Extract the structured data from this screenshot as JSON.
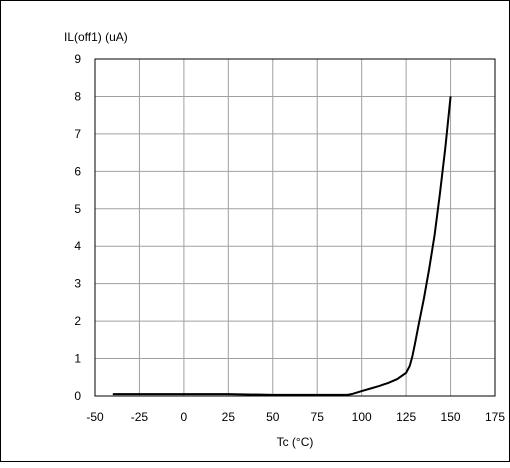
{
  "chart_data": {
    "type": "line",
    "ylabel": "IL(off1) (uA)",
    "xlabel": "Tc (°C)",
    "xlim": [
      -50,
      175
    ],
    "ylim": [
      0,
      9
    ],
    "xticks": [
      "-50",
      "-25",
      "0",
      "25",
      "50",
      "75",
      "100",
      "125",
      "150",
      "175"
    ],
    "yticks": [
      "0",
      "1",
      "2",
      "3",
      "4",
      "5",
      "6",
      "7",
      "8",
      "9"
    ],
    "grid": true,
    "series": [
      {
        "x": [
          -40,
          0,
          25,
          50,
          75,
          92,
          95,
          100,
          105,
          110,
          115,
          120,
          125,
          127,
          128.5,
          130,
          132,
          135,
          138,
          141,
          144,
          147,
          150
        ],
        "y": [
          0.05,
          0.05,
          0.05,
          0.03,
          0.03,
          0.03,
          0.06,
          0.13,
          0.2,
          0.27,
          0.35,
          0.45,
          0.62,
          0.8,
          1.05,
          1.4,
          1.9,
          2.6,
          3.4,
          4.3,
          5.4,
          6.6,
          8.0
        ]
      }
    ],
    "colors": {
      "line": "#000000",
      "grid": "#a0a0a0"
    }
  }
}
